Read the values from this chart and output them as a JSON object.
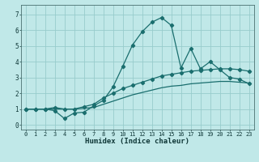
{
  "xlabel": "Humidex (Indice chaleur)",
  "bg_color": "#c0e8e8",
  "grid_color": "#98cccc",
  "line_color": "#1a6e6e",
  "xlim": [
    -0.5,
    23.5
  ],
  "ylim": [
    -0.3,
    7.6
  ],
  "xticks": [
    0,
    1,
    2,
    3,
    4,
    5,
    6,
    7,
    8,
    9,
    10,
    11,
    12,
    13,
    14,
    15,
    16,
    17,
    18,
    19,
    20,
    21,
    22,
    23
  ],
  "yticks": [
    0,
    1,
    2,
    3,
    4,
    5,
    6,
    7
  ],
  "curve1_x": [
    0,
    1,
    2,
    3,
    4,
    5,
    6,
    7,
    8,
    9,
    10,
    11,
    12,
    13,
    14,
    15,
    16,
    17,
    18,
    19,
    20,
    21,
    22,
    23
  ],
  "curve1_y": [
    1.0,
    1.0,
    1.0,
    0.9,
    0.4,
    0.75,
    0.8,
    1.2,
    1.55,
    2.4,
    3.7,
    5.05,
    5.9,
    6.5,
    6.8,
    6.3,
    3.6,
    4.85,
    3.55,
    4.0,
    3.5,
    3.0,
    2.9,
    2.6
  ],
  "curve2_x": [
    0,
    1,
    2,
    3,
    4,
    5,
    6,
    7,
    8,
    9,
    10,
    11,
    12,
    13,
    14,
    15,
    16,
    17,
    18,
    19,
    20,
    21,
    22,
    23
  ],
  "curve2_y": [
    1.0,
    1.0,
    1.0,
    1.1,
    1.0,
    1.0,
    1.15,
    1.3,
    1.7,
    2.0,
    2.3,
    2.5,
    2.7,
    2.9,
    3.1,
    3.2,
    3.3,
    3.4,
    3.45,
    3.5,
    3.55,
    3.55,
    3.5,
    3.4
  ],
  "curve3_x": [
    0,
    1,
    2,
    3,
    4,
    5,
    6,
    7,
    8,
    9,
    10,
    11,
    12,
    13,
    14,
    15,
    16,
    17,
    18,
    19,
    20,
    21,
    22,
    23
  ],
  "curve3_y": [
    1.0,
    1.0,
    1.0,
    1.0,
    1.0,
    1.0,
    1.05,
    1.1,
    1.3,
    1.5,
    1.7,
    1.9,
    2.05,
    2.2,
    2.35,
    2.45,
    2.5,
    2.6,
    2.65,
    2.7,
    2.75,
    2.75,
    2.7,
    2.65
  ]
}
